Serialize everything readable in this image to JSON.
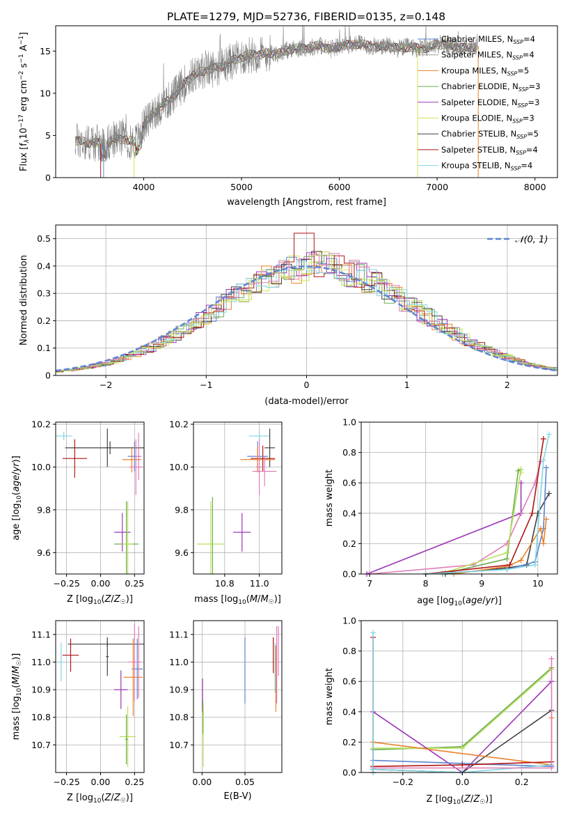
{
  "title": "PLATE=1279, MJD=52736, FIBERID=0135, z=0.148",
  "colors": {
    "Chabrier MILES": "#5b84d1",
    "Salpeter MILES": "#9e9e9e",
    "Kroupa MILES": "#e8822a",
    "Chabrier ELODIE": "#6bab50",
    "Salpeter ELODIE": "#9c35b4",
    "Kroupa ELODIE": "#d8e05a",
    "Chabrier STELIB": "#404040",
    "Salpeter STELIB": "#b01414",
    "Kroupa STELIB": "#7fd6e3",
    "pink": "#e07cb8",
    "lime": "#b7e05a",
    "orange": "#e8822a",
    "grid": "#b0b0b0",
    "spectrum": "#808080"
  },
  "chart_data": [
    {
      "id": "spectrum",
      "type": "line",
      "title": "PLATE=1279, MJD=52736, FIBERID=0135, z=0.148",
      "xlabel": "wavelength [Angstrom, rest frame]",
      "ylabel_parts": [
        "Flux [f",
        "λ",
        "10",
        "−17",
        " erg cm",
        "−2",
        " s",
        "−1",
        " A",
        "−1",
        "]"
      ],
      "xlim": [
        3100,
        8230
      ],
      "ylim": [
        0,
        18
      ],
      "xticks": [
        4000,
        5000,
        6000,
        7000,
        8000
      ],
      "yticks": [
        0,
        5,
        10,
        15
      ],
      "grid": false,
      "legend_placement": "top-right",
      "legend": [
        {
          "prefix": "Chabrier MILES, N",
          "sub": "SSP",
          "suffix": "=4",
          "color": "#5b84d1"
        },
        {
          "prefix": "Salpeter MILES, N",
          "sub": "SSP",
          "suffix": "=4",
          "color": "#9e9e9e"
        },
        {
          "prefix": "Kroupa MILES, N",
          "sub": "SSP",
          "suffix": "=5",
          "color": "#e8822a"
        },
        {
          "prefix": "Chabrier ELODIE, N",
          "sub": "SSP",
          "suffix": "=3",
          "color": "#6bab50"
        },
        {
          "prefix": "Salpeter ELODIE, N",
          "sub": "SSP",
          "suffix": "=3",
          "color": "#9c35b4"
        },
        {
          "prefix": "Kroupa ELODIE, N",
          "sub": "SSP",
          "suffix": "=3",
          "color": "#d8e05a"
        },
        {
          "prefix": "Chabrier STELIB, N",
          "sub": "SSP",
          "suffix": "=5",
          "color": "#404040"
        },
        {
          "prefix": "Salpeter STELIB, N",
          "sub": "SSP",
          "suffix": "=4",
          "color": "#b01414"
        },
        {
          "prefix": "Kroupa STELIB, N",
          "sub": "SSP",
          "suffix": "=4",
          "color": "#7fd6e3"
        }
      ],
      "continuum": {
        "x": [
          3300,
          3400,
          3500,
          3600,
          3700,
          3800,
          3900,
          3950,
          4000,
          4100,
          4200,
          4300,
          4400,
          4500,
          4600,
          4700,
          4800,
          4900,
          5000,
          5100,
          5200,
          5300,
          5400,
          5500,
          5600,
          5700,
          5800,
          5900,
          6000,
          6100,
          6200,
          6300,
          6400,
          6500,
          6600,
          6700,
          6800,
          6900,
          7000,
          7100,
          7200,
          7300,
          7400
        ],
        "y": [
          4.4,
          4.2,
          4.1,
          4.0,
          4.5,
          4.6,
          4.2,
          4.6,
          6.2,
          7.7,
          8.6,
          9.6,
          11.0,
          12.1,
          12.6,
          12.9,
          13.2,
          13.8,
          14.3,
          14.6,
          14.6,
          14.8,
          14.7,
          15.3,
          15.3,
          15.4,
          15.7,
          15.2,
          15.6,
          15.7,
          15.9,
          15.6,
          15.5,
          15.6,
          15.3,
          15.5,
          15.3,
          15.4,
          15.8,
          15.8,
          15.5,
          15.3,
          15.6
        ]
      }
    },
    {
      "id": "residuals",
      "type": "step-histogram",
      "xlabel": "(data-model)/error",
      "ylabel": "Normed distribution",
      "xlim": [
        -2.5,
        2.5
      ],
      "ylim": [
        0,
        0.55
      ],
      "xticks": [
        -2,
        -1,
        0,
        1,
        2
      ],
      "xtick_labels": [
        "−2",
        "−1",
        "0",
        "1",
        "2"
      ],
      "yticks": [
        0.0,
        0.1,
        0.2,
        0.3,
        0.4,
        0.5
      ],
      "grid": true,
      "legend_placement": "top-right",
      "legend": [
        {
          "label": "𝒩(0, 1)",
          "color": "#5b84d1",
          "style": "dashed"
        }
      ],
      "gaussian": {
        "mu": 0,
        "sigma": 1
      }
    },
    {
      "id": "age-vs-Z",
      "type": "errorbar",
      "xlabel": "Z [log10(Z/Z☉)]",
      "ylabel": "age [log10(age/yr)]",
      "xlim": [
        -0.33,
        0.32
      ],
      "ylim": [
        9.5,
        10.21
      ],
      "xticks": [
        -0.25,
        0.0,
        0.25
      ],
      "xtick_labels": [
        "−0.25",
        "0.00",
        "0.25"
      ],
      "yticks": [
        9.6,
        9.8,
        10.0,
        10.2
      ],
      "ytick_labels": [
        "9.6",
        "9.8",
        "10.0",
        "10.2"
      ],
      "grid": true,
      "points": [
        {
          "x": -0.27,
          "y": 10.145,
          "xerr": 0.06,
          "yerr": 0.02,
          "color": "#7fd6e3"
        },
        {
          "x": 0.07,
          "y": 10.09,
          "xerr": 0.33,
          "yerr": 0.03,
          "color": "#404040"
        },
        {
          "x": -0.19,
          "y": 10.04,
          "xerr": 0.09,
          "yerr": 0.09,
          "color": "#b01414"
        },
        {
          "x": 0.05,
          "y": 10.09,
          "xerr": 0.01,
          "yerr": 0.09,
          "color": "#404040"
        },
        {
          "x": 0.25,
          "y": 10.05,
          "xerr": 0.05,
          "yerr": 0.07,
          "color": "#5b84d1"
        },
        {
          "x": 0.23,
          "y": 10.035,
          "xerr": 0.07,
          "yerr": 0.06,
          "color": "#e8822a"
        },
        {
          "x": 0.26,
          "y": 10.0,
          "xerr": 0.05,
          "yerr": 0.13,
          "color": "#e07cb8"
        },
        {
          "x": 0.28,
          "y": 10.05,
          "xerr": 0.02,
          "yerr": 0.11,
          "color": "#e07cb8"
        },
        {
          "x": 0.16,
          "y": 9.695,
          "xerr": 0.06,
          "yerr": 0.09,
          "color": "#9c35b4"
        },
        {
          "x": 0.19,
          "y": 9.64,
          "xerr": 0.09,
          "yerr": 0.2,
          "color": "#6bab50"
        },
        {
          "x": 0.2,
          "y": 9.64,
          "xerr": 0.04,
          "yerr": 0.2,
          "color": "#b7e05a"
        }
      ]
    },
    {
      "id": "age-vs-mass",
      "type": "errorbar",
      "xlabel": "mass [log10(M/M☉)]",
      "ylabel": "",
      "xlim": [
        10.62,
        11.13
      ],
      "ylim": [
        9.5,
        10.21
      ],
      "xticks": [
        10.8,
        11.0
      ],
      "xtick_labels": [
        "10.8",
        "11.0"
      ],
      "yticks": [
        9.6,
        9.8,
        10.0,
        10.2
      ],
      "ytick_labels": [
        "9.6",
        "9.8",
        "10.0",
        "10.2"
      ],
      "grid": true,
      "points": [
        {
          "x": 11.0,
          "y": 10.145,
          "xerr": 0.06,
          "yerr": 0.02,
          "color": "#7fd6e3"
        },
        {
          "x": 11.06,
          "y": 10.09,
          "xerr": 0.03,
          "yerr": 0.09,
          "color": "#404040"
        },
        {
          "x": 11.02,
          "y": 10.04,
          "xerr": 0.07,
          "yerr": 0.06,
          "color": "#b01414"
        },
        {
          "x": 10.99,
          "y": 10.05,
          "xerr": 0.06,
          "yerr": 0.07,
          "color": "#5b84d1"
        },
        {
          "x": 10.99,
          "y": 10.035,
          "xerr": 0.1,
          "yerr": 0.06,
          "color": "#e8822a"
        },
        {
          "x": 11.03,
          "y": 9.98,
          "xerr": 0.07,
          "yerr": 0.07,
          "color": "#e07cb8"
        },
        {
          "x": 11.0,
          "y": 10.0,
          "xerr": 0.02,
          "yerr": 0.13,
          "color": "#e07cb8"
        },
        {
          "x": 10.9,
          "y": 9.695,
          "xerr": 0.05,
          "yerr": 0.09,
          "color": "#9c35b4"
        },
        {
          "x": 10.73,
          "y": 9.64,
          "xerr": 0.01,
          "yerr": 0.22,
          "color": "#6bab50"
        },
        {
          "x": 10.72,
          "y": 9.64,
          "xerr": 0.08,
          "yerr": 0.2,
          "color": "#b7e05a"
        }
      ]
    },
    {
      "id": "massweight-vs-age",
      "type": "line",
      "xlabel": "age [log10(age/yr)]",
      "ylabel": "mass weight",
      "xlim": [
        6.85,
        10.35
      ],
      "ylim": [
        0,
        1
      ],
      "xticks": [
        7,
        8,
        9,
        10
      ],
      "xtick_labels": [
        "7",
        "8",
        "9",
        "10"
      ],
      "yticks": [
        0.0,
        0.2,
        0.4,
        0.6,
        0.8,
        1.0
      ],
      "ytick_labels": [
        "0.0",
        "0.2",
        "0.4",
        "0.6",
        "0.8",
        "1.0"
      ],
      "grid": true,
      "series": [
        {
          "color": "#9c35b4",
          "x": [
            6.95,
            9.7,
            9.7
          ],
          "y": [
            0.0,
            0.4,
            0.6
          ]
        },
        {
          "color": "#e07cb8",
          "x": [
            7.0,
            8.85,
            9.45,
            9.95,
            10.05
          ],
          "y": [
            0.0,
            0.06,
            0.2,
            0.6,
            0.74
          ]
        },
        {
          "color": "#6bab50",
          "x": [
            8.3,
            9.45,
            9.65,
            9.7
          ],
          "y": [
            0.0,
            0.1,
            0.68,
            0.69
          ]
        },
        {
          "color": "#b7e05a",
          "x": [
            8.35,
            9.45,
            9.7,
            9.7
          ],
          "y": [
            0.01,
            0.14,
            0.69,
            0.67
          ]
        },
        {
          "color": "#404040",
          "x": [
            8.35,
            9.45,
            9.8,
            10.0,
            10.2
          ],
          "y": [
            0.0,
            0.04,
            0.06,
            0.4,
            0.53
          ]
        },
        {
          "color": "#5b84d1",
          "x": [
            8.0,
            9.45,
            9.95,
            10.1,
            10.15
          ],
          "y": [
            0.0,
            0.03,
            0.08,
            0.3,
            0.7
          ]
        },
        {
          "color": "#e8822a",
          "x": [
            8.5,
            9.45,
            9.7,
            10.05,
            10.1,
            10.15
          ],
          "y": [
            0.0,
            0.05,
            0.09,
            0.3,
            0.2,
            0.36
          ]
        },
        {
          "color": "#b01414",
          "x": [
            8.0,
            9.5,
            9.9,
            10.1
          ],
          "y": [
            0.0,
            0.06,
            0.4,
            0.89
          ]
        },
        {
          "color": "#7fd6e3",
          "x": [
            8.0,
            9.45,
            9.95,
            10.1,
            10.2
          ],
          "y": [
            0.0,
            0.03,
            0.06,
            0.75,
            0.92
          ]
        }
      ]
    },
    {
      "id": "mass-vs-Z",
      "type": "errorbar",
      "xlabel": "Z [log10(Z/Z☉)]",
      "ylabel": "mass [log10(M/M☉)]",
      "xlim": [
        -0.33,
        0.32
      ],
      "ylim": [
        10.6,
        11.15
      ],
      "xticks": [
        -0.25,
        0.0,
        0.25
      ],
      "xtick_labels": [
        "−0.25",
        "0.00",
        "0.25"
      ],
      "yticks": [
        10.7,
        10.8,
        10.9,
        11.0,
        11.1
      ],
      "ytick_labels": [
        "10.7",
        "10.8",
        "10.9",
        "11.0",
        "11.1"
      ],
      "grid": true,
      "points": [
        {
          "x": 0.05,
          "y": 11.065,
          "xerr": 0.29,
          "yerr": 0.01,
          "color": "#404040"
        },
        {
          "x": 0.05,
          "y": 11.02,
          "xerr": 0.01,
          "yerr": 0.07,
          "color": "#404040"
        },
        {
          "x": -0.22,
          "y": 11.025,
          "xerr": 0.06,
          "yerr": 0.06,
          "color": "#b01414"
        },
        {
          "x": -0.29,
          "y": 11.0,
          "xerr": 0.02,
          "yerr": 0.07,
          "color": "#7fd6e3"
        },
        {
          "x": 0.27,
          "y": 10.975,
          "xerr": 0.04,
          "yerr": 0.11,
          "color": "#5b84d1"
        },
        {
          "x": 0.24,
          "y": 10.945,
          "xerr": 0.07,
          "yerr": 0.14,
          "color": "#e8822a"
        },
        {
          "x": 0.25,
          "y": 11.0,
          "xerr": 0.05,
          "yerr": 0.14,
          "color": "#e07cb8"
        },
        {
          "x": 0.28,
          "y": 11.0,
          "xerr": 0.01,
          "yerr": 0.13,
          "color": "#e07cb8"
        },
        {
          "x": 0.15,
          "y": 10.9,
          "xerr": 0.05,
          "yerr": 0.07,
          "color": "#9c35b4"
        },
        {
          "x": 0.2,
          "y": 10.73,
          "xerr": 0.06,
          "yerr": 0.11,
          "color": "#b7e05a"
        },
        {
          "x": 0.19,
          "y": 10.72,
          "xerr": 0.01,
          "yerr": 0.09,
          "color": "#6bab50"
        }
      ]
    },
    {
      "id": "mass-vs-ebv",
      "type": "errorbar",
      "xlabel": "E(B-V)",
      "ylabel": "",
      "xlim": [
        -0.01,
        0.093
      ],
      "ylim": [
        10.6,
        11.15
      ],
      "xticks": [
        0.0,
        0.05
      ],
      "xtick_labels": [
        "0.00",
        "0.05"
      ],
      "yticks": [
        10.7,
        10.8,
        10.9,
        11.0,
        11.1
      ],
      "ytick_labels": [
        "10.7",
        "10.8",
        "10.9",
        "11.0",
        "11.1"
      ],
      "grid": true,
      "points": [
        {
          "x": 0.05,
          "y": 10.97,
          "xerr": 0,
          "yerr": 0.12,
          "color": "#5b84d1"
        },
        {
          "x": 0.0005,
          "y": 10.88,
          "xerr": 0,
          "yerr": 0.06,
          "color": "#9c35b4"
        },
        {
          "x": 0.001,
          "y": 10.8,
          "xerr": 0,
          "yerr": 0.06,
          "color": "#6bab50"
        },
        {
          "x": 0.0015,
          "y": 10.73,
          "xerr": 0,
          "yerr": 0.11,
          "color": "#b7e05a"
        },
        {
          "x": 0.083,
          "y": 11.025,
          "xerr": 0,
          "yerr": 0.065,
          "color": "#b01414"
        },
        {
          "x": 0.085,
          "y": 10.98,
          "xerr": 0,
          "yerr": 0.09,
          "color": "#7fd6e3"
        },
        {
          "x": 0.086,
          "y": 10.94,
          "xerr": 0,
          "yerr": 0.12,
          "color": "#e8822a"
        },
        {
          "x": 0.087,
          "y": 10.99,
          "xerr": 0,
          "yerr": 0.14,
          "color": "#e07cb8"
        },
        {
          "x": 0.089,
          "y": 11.04,
          "xerr": 0,
          "yerr": 0.09,
          "color": "#e07cb8"
        }
      ]
    },
    {
      "id": "massweight-vs-Z",
      "type": "line",
      "xlabel": "Z [log10(Z/Z☉)]",
      "ylabel": "mass weight",
      "xlim": [
        -0.34,
        0.32
      ],
      "ylim": [
        0,
        1
      ],
      "xticks": [
        -0.2,
        0.0,
        0.2
      ],
      "xtick_labels": [
        "−0.2",
        "0.0",
        "0.2"
      ],
      "yticks": [
        0.0,
        0.2,
        0.4,
        0.6,
        0.8,
        1.0
      ],
      "ytick_labels": [
        "0.0",
        "0.2",
        "0.4",
        "0.6",
        "0.8",
        "1.0"
      ],
      "grid": true,
      "series": [
        {
          "color": "#6bab50",
          "x": [
            -0.3,
            0.0,
            0.3
          ],
          "y": [
            0.15,
            0.17,
            0.69
          ]
        },
        {
          "color": "#b7e05a",
          "x": [
            -0.3,
            0.0,
            0.3
          ],
          "y": [
            0.16,
            0.16,
            0.68
          ]
        },
        {
          "color": "#9c35b4",
          "x": [
            -0.3,
            0.0,
            0.3,
            0.3
          ],
          "y": [
            0.4,
            0.0,
            0.6,
            0.6
          ]
        },
        {
          "color": "#404040",
          "x": [
            -0.3,
            0.0,
            0.3
          ],
          "y": [
            0.02,
            0.0,
            0.41
          ]
        },
        {
          "color": "#e8822a",
          "x": [
            -0.3,
            0.3,
            0.3
          ],
          "y": [
            0.2,
            0.05,
            0.36
          ]
        },
        {
          "color": "#5b84d1",
          "x": [
            -0.3,
            0.0,
            0.3
          ],
          "y": [
            0.08,
            0.06,
            0.04
          ]
        },
        {
          "color": "#b01414",
          "x": [
            -0.3,
            0.0,
            0.3
          ],
          "y": [
            0.04,
            0.05,
            0.07
          ]
        },
        {
          "color": "#7fd6e3",
          "x": [
            -0.3,
            0.0,
            0.3
          ],
          "y": [
            0.02,
            0.0,
            0.05
          ]
        },
        {
          "color": "#e07cb8",
          "x": [
            -0.3,
            0.3,
            0.3
          ],
          "y": [
            0.03,
            0.03,
            0.75
          ]
        },
        {
          "color": "#b01414",
          "x": [
            -0.3,
            -0.3
          ],
          "y": [
            0.0,
            0.89
          ]
        },
        {
          "color": "#7fd6e3",
          "x": [
            -0.3,
            -0.3
          ],
          "y": [
            0.0,
            0.92
          ]
        }
      ]
    }
  ]
}
